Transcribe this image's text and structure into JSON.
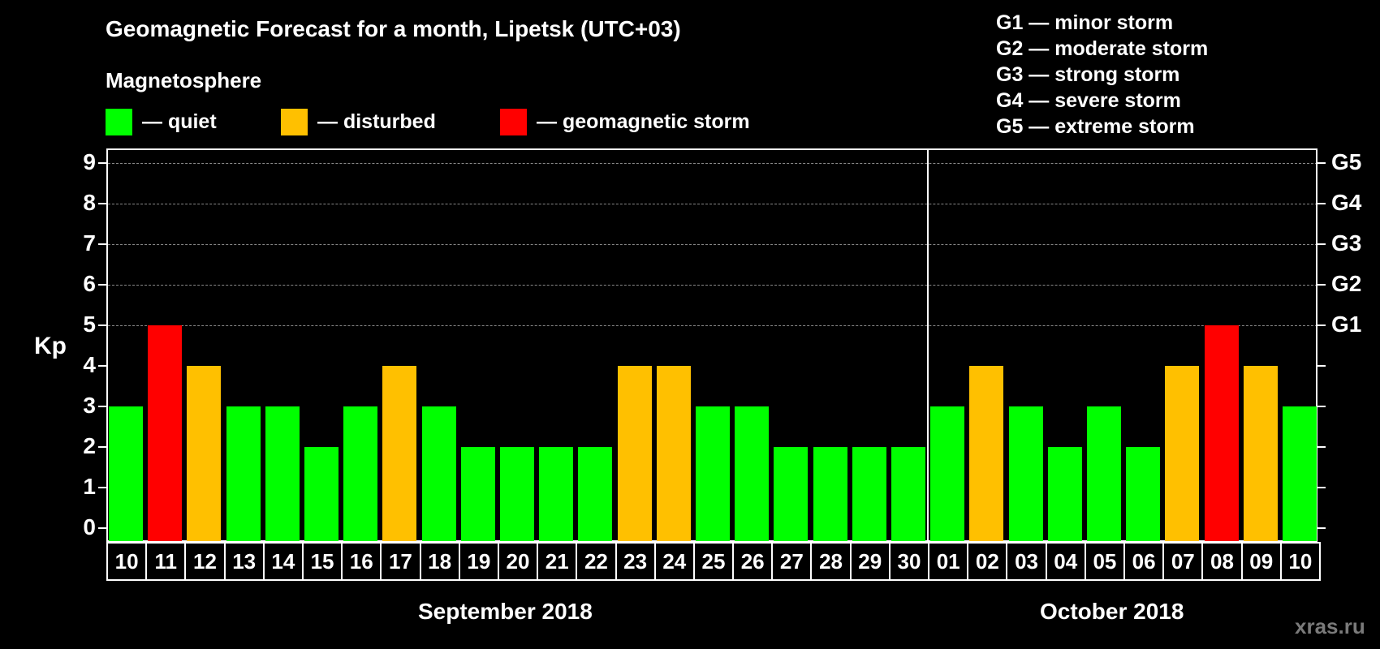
{
  "header": {
    "title": "Geomagnetic Forecast for a month, Lipetsk (UTC+03)",
    "subtitle": "Magnetosphere"
  },
  "legend": [
    {
      "label": "— quiet",
      "color": "#00ff00"
    },
    {
      "label": "— disturbed",
      "color": "#ffc000"
    },
    {
      "label": "— geomagnetic storm",
      "color": "#ff0000"
    }
  ],
  "storm_scale": [
    "G1 — minor storm",
    "G2 — moderate storm",
    "G3 — strong storm",
    "G4 — severe storm",
    "G5 — extreme storm"
  ],
  "axis": {
    "ylabel": "Kp",
    "yticks": [
      "0",
      "1",
      "2",
      "3",
      "4",
      "5",
      "6",
      "7",
      "8",
      "9"
    ],
    "right_ticks": {
      "5": "G1",
      "6": "G2",
      "7": "G3",
      "8": "G4",
      "9": "G5"
    }
  },
  "months": [
    "September 2018",
    "October 2018"
  ],
  "watermark": "xras.ru",
  "chart_data": {
    "type": "bar",
    "title": "Geomagnetic Forecast for a month, Lipetsk (UTC+03)",
    "xlabel": "September 2018 / October 2018",
    "ylabel": "Kp",
    "ylim": [
      0,
      9
    ],
    "grid": true,
    "categories": [
      "10",
      "11",
      "12",
      "13",
      "14",
      "15",
      "16",
      "17",
      "18",
      "19",
      "20",
      "21",
      "22",
      "23",
      "24",
      "25",
      "26",
      "27",
      "28",
      "29",
      "30",
      "01",
      "02",
      "03",
      "04",
      "05",
      "06",
      "07",
      "08",
      "09",
      "10"
    ],
    "values": [
      3,
      5,
      4,
      3,
      3,
      2,
      3,
      4,
      3,
      2,
      2,
      2,
      2,
      4,
      4,
      3,
      3,
      2,
      2,
      2,
      2,
      3,
      4,
      3,
      2,
      3,
      2,
      4,
      5,
      4,
      3
    ],
    "status": [
      "quiet",
      "storm",
      "disturbed",
      "quiet",
      "quiet",
      "quiet",
      "quiet",
      "disturbed",
      "quiet",
      "quiet",
      "quiet",
      "quiet",
      "quiet",
      "disturbed",
      "disturbed",
      "quiet",
      "quiet",
      "quiet",
      "quiet",
      "quiet",
      "quiet",
      "quiet",
      "disturbed",
      "quiet",
      "quiet",
      "quiet",
      "quiet",
      "disturbed",
      "storm",
      "disturbed",
      "quiet"
    ],
    "colors": {
      "quiet": "#00ff00",
      "disturbed": "#ffc000",
      "storm": "#ff0000"
    },
    "legend": [
      "quiet",
      "disturbed",
      "geomagnetic storm"
    ],
    "right_axis": {
      "5": "G1",
      "6": "G2",
      "7": "G3",
      "8": "G4",
      "9": "G5"
    }
  }
}
